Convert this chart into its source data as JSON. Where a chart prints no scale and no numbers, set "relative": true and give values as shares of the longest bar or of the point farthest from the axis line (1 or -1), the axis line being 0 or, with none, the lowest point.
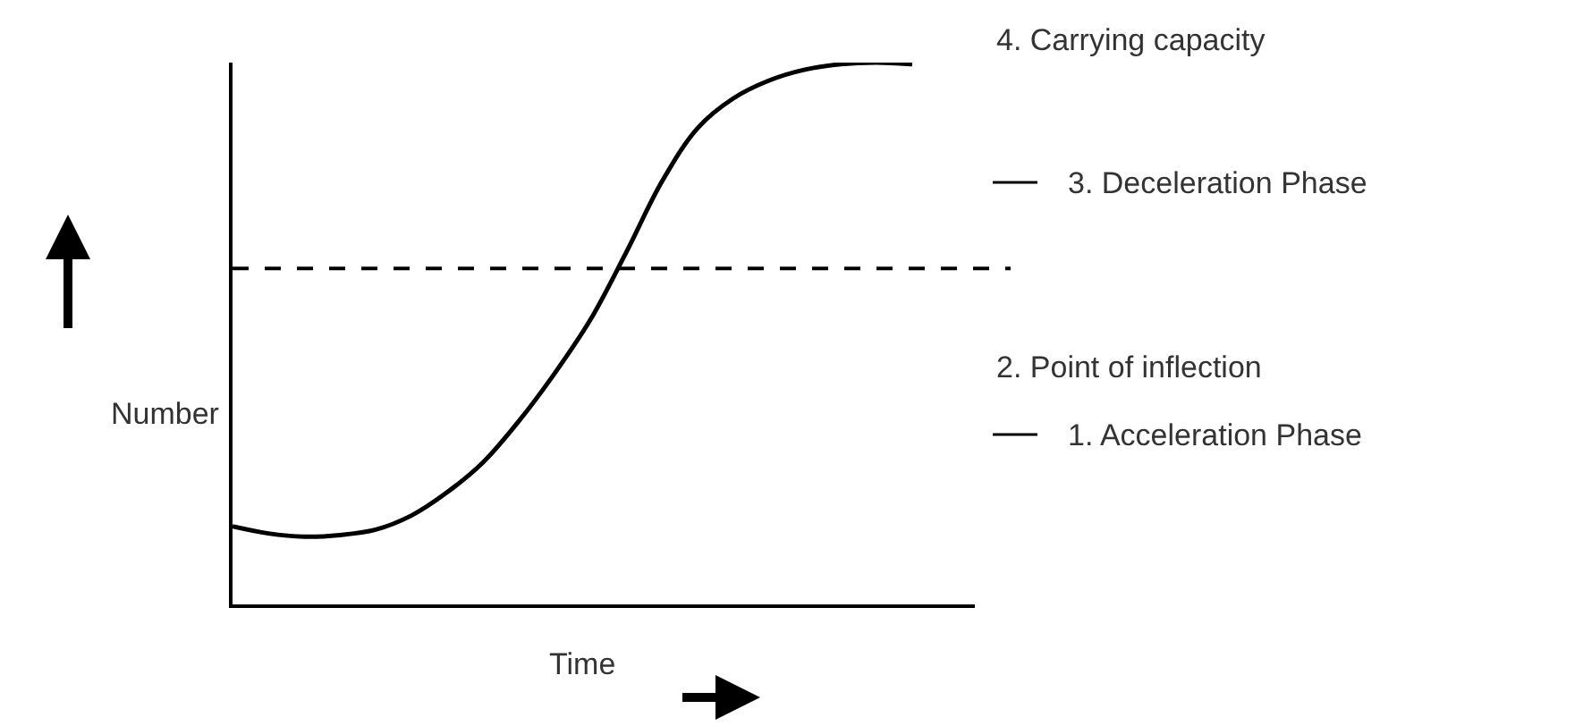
{
  "chart_data": {
    "type": "line",
    "relative": true,
    "xlabel": "Time",
    "ylabel": "Number",
    "categories": [
      null,
      null,
      null,
      null,
      null,
      null,
      null,
      null,
      null,
      null,
      null,
      null,
      null,
      null,
      null,
      null,
      null,
      null,
      null,
      null
    ],
    "series": [
      {
        "color": "#000000",
        "values": [
          0.144,
          0.131,
          0.125,
          0.128,
          0.138,
          0.164,
          0.207,
          0.262,
          0.338,
          0.426,
          0.525,
          0.649,
          0.78,
          0.879,
          0.934,
          0.967,
          0.987,
          0.997,
          1.0,
          0.997
        ]
      }
    ],
    "ref_lines": [
      {
        "axis": "y",
        "value": 0.62,
        "color": "#000000",
        "line_style": "dashed"
      }
    ],
    "annotations": [
      "4. Carrying capacity",
      "3. Deceleration Phase",
      "2. Point of inflection",
      "1. Acceleration Phase"
    ],
    "legend": false,
    "marker": "none",
    "line_style": "solid"
  }
}
